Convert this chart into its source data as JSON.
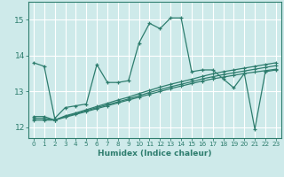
{
  "xlabel": "Humidex (Indice chaleur)",
  "xlim": [
    -0.5,
    23.5
  ],
  "ylim": [
    11.7,
    15.5
  ],
  "xticks": [
    0,
    1,
    2,
    3,
    4,
    5,
    6,
    7,
    8,
    9,
    10,
    11,
    12,
    13,
    14,
    15,
    16,
    17,
    18,
    19,
    20,
    21,
    22,
    23
  ],
  "yticks": [
    12,
    13,
    14,
    15
  ],
  "bg_color": "#ceeaea",
  "line_color": "#2e7d6e",
  "grid_color": "#ffffff",
  "line1_y": [
    13.8,
    13.7,
    12.25,
    12.55,
    12.6,
    12.65,
    13.75,
    13.25,
    13.25,
    13.3,
    14.35,
    14.9,
    14.75,
    15.05,
    15.05,
    13.55,
    13.6,
    13.6,
    13.35,
    13.1,
    13.5,
    11.95,
    13.55,
    13.6
  ],
  "line2_y": [
    12.2,
    12.2,
    12.2,
    12.28,
    12.36,
    12.44,
    12.52,
    12.6,
    12.68,
    12.76,
    12.84,
    12.92,
    13.0,
    13.08,
    13.15,
    13.22,
    13.29,
    13.35,
    13.4,
    13.45,
    13.5,
    13.54,
    13.58,
    13.62
  ],
  "line3_y": [
    12.25,
    12.25,
    12.2,
    12.3,
    12.38,
    12.46,
    12.55,
    12.63,
    12.71,
    12.79,
    12.88,
    12.97,
    13.05,
    13.13,
    13.2,
    13.27,
    13.35,
    13.41,
    13.47,
    13.52,
    13.57,
    13.62,
    13.67,
    13.72
  ],
  "line4_y": [
    12.3,
    12.3,
    12.2,
    12.32,
    12.4,
    12.49,
    12.58,
    12.67,
    12.76,
    12.84,
    12.94,
    13.03,
    13.12,
    13.2,
    13.27,
    13.34,
    13.42,
    13.49,
    13.55,
    13.6,
    13.65,
    13.7,
    13.75,
    13.8
  ]
}
